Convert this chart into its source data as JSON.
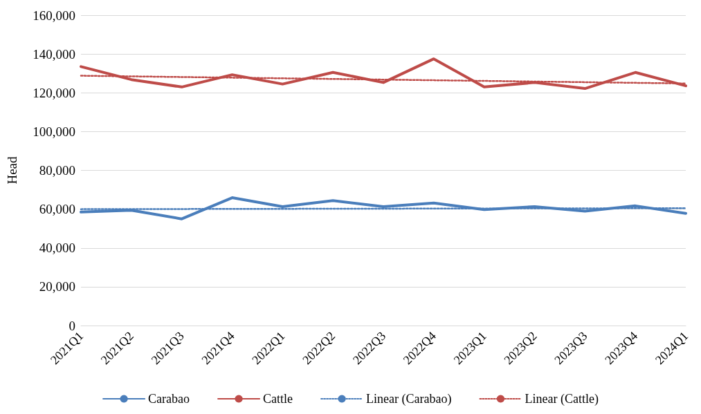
{
  "chart_data": {
    "type": "line",
    "ylabel": "Head",
    "categories": [
      "2021Q1",
      "2021Q2",
      "2021Q3",
      "2021Q4",
      "2022Q1",
      "2022Q2",
      "2022Q3",
      "2022Q4",
      "2023Q1",
      "2023Q2",
      "2023Q3",
      "2023Q4",
      "2024Q1"
    ],
    "series": [
      {
        "name": "Carabao",
        "color": "#4a7ebb",
        "line_style": "solid",
        "values": [
          58500,
          59400,
          55000,
          65900,
          61300,
          64400,
          61300,
          63200,
          59800,
          61300,
          59000,
          61700,
          57800
        ]
      },
      {
        "name": "Cattle",
        "color": "#be4b48",
        "line_style": "solid",
        "values": [
          133500,
          126800,
          123000,
          129300,
          124500,
          130500,
          125300,
          137500,
          123000,
          125300,
          122200,
          130500,
          123600
        ]
      },
      {
        "name": "Linear (Carabao)",
        "color": "#4a7ebb",
        "line_style": "dotted",
        "x": [
          "2021Q1",
          "2024Q1"
        ],
        "values": [
          60000,
          60500
        ]
      },
      {
        "name": "Linear (Cattle)",
        "color": "#be4b48",
        "line_style": "dotted",
        "x": [
          "2021Q1",
          "2024Q1"
        ],
        "values": [
          128800,
          124800
        ]
      }
    ],
    "ylim": [
      0,
      160000
    ],
    "yticks": [
      0,
      {
        "value": 20000,
        "label": "20,000"
      },
      {
        "value": 40000,
        "label": "40,000"
      },
      {
        "value": 60000,
        "label": "60,000"
      },
      {
        "value": 80000,
        "label": "80,000"
      },
      {
        "value": 100000,
        "label": "100,000"
      },
      {
        "value": 120000,
        "label": "120,000"
      },
      {
        "value": 140000,
        "label": "140,000"
      },
      {
        "value": 160000,
        "label": "160,000"
      }
    ],
    "grid": "y",
    "legend": "bottom",
    "marker": "none"
  }
}
